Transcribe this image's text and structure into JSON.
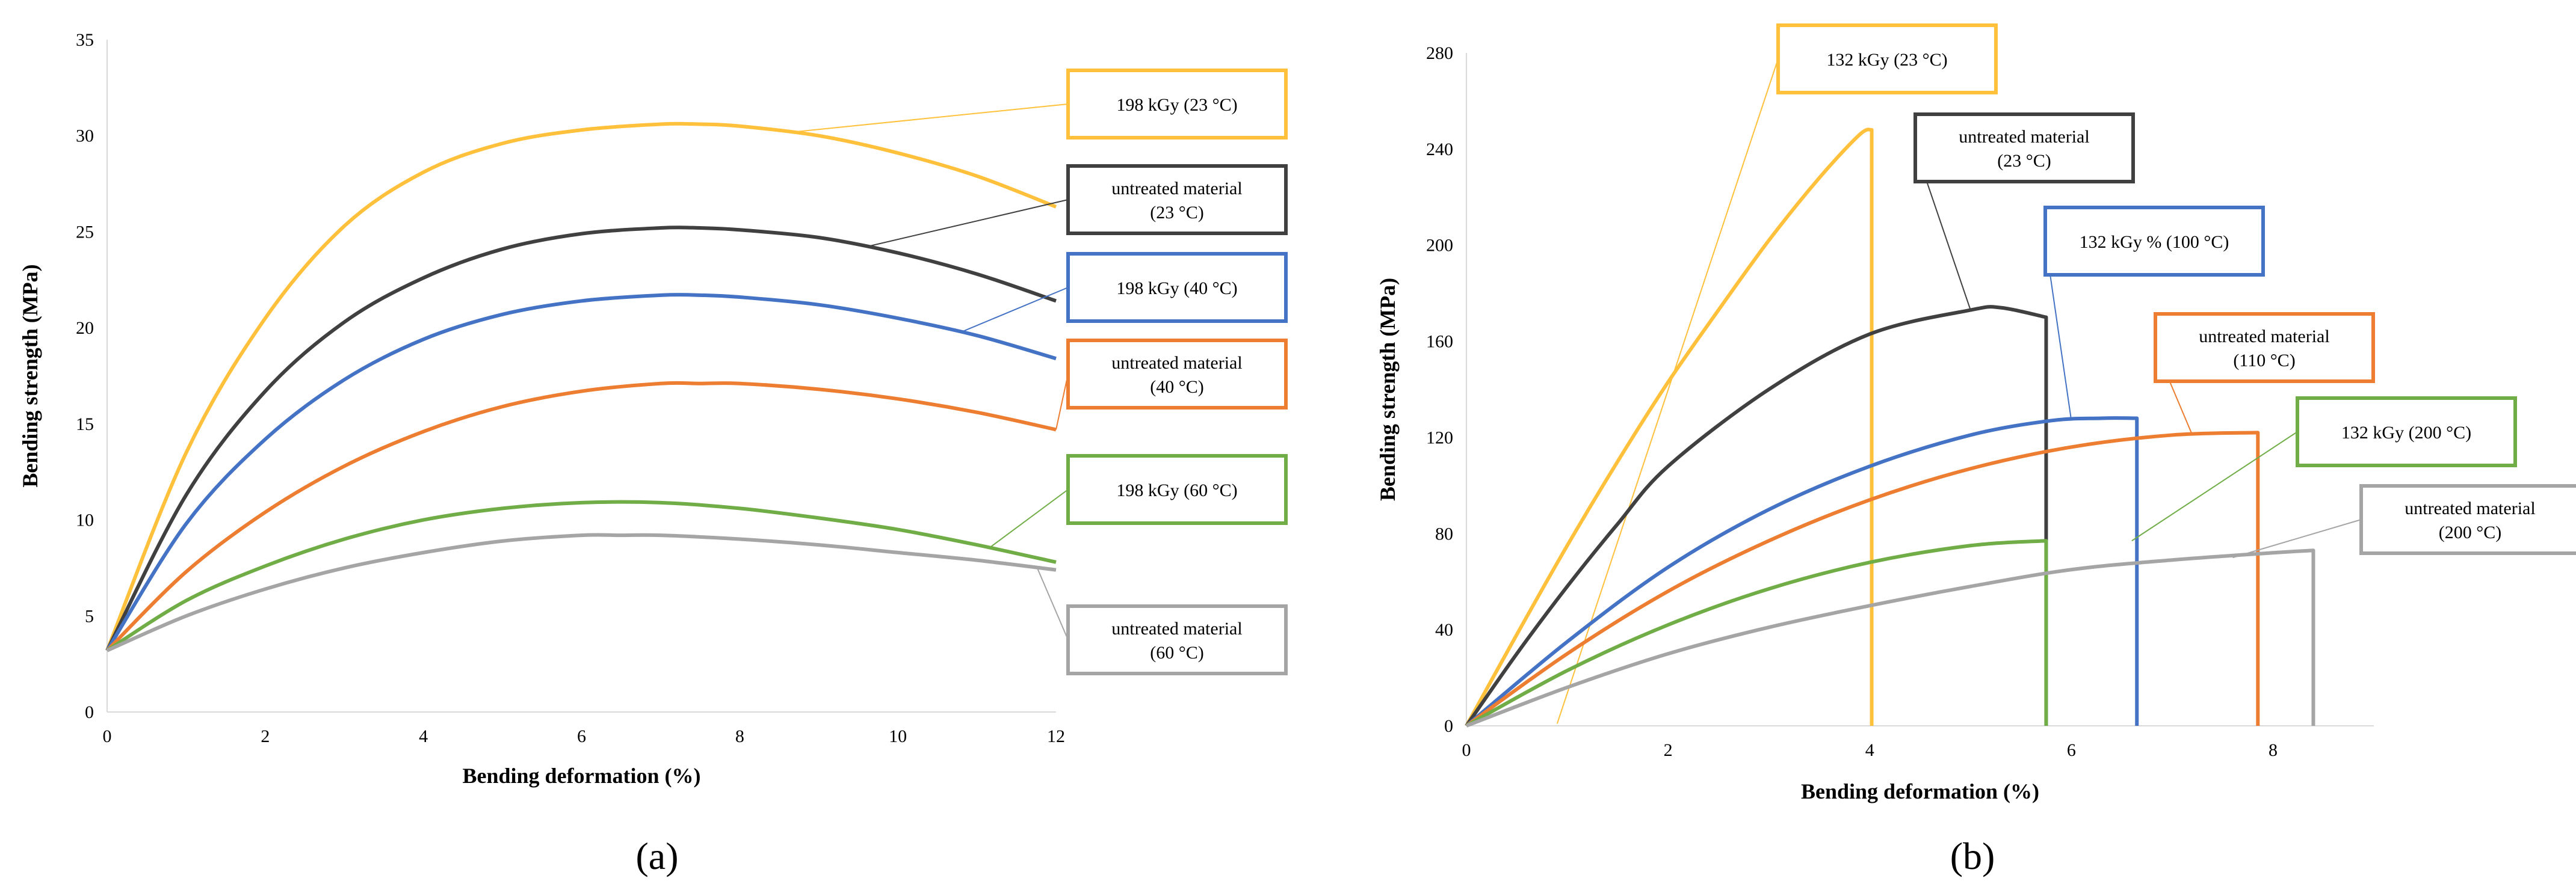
{
  "colors": {
    "yellow": "#FFC13B",
    "dark": "#404040",
    "blue": "#4472C4",
    "orange": "#ED7D31",
    "green": "#70AD47",
    "gray": "#A5A5A5"
  },
  "chart_data": [
    {
      "type": "line",
      "panel_label": "(a)",
      "xlabel": "Bending deformation (%)",
      "ylabel": "Bending strength (MPa)",
      "xlim": [
        0,
        12
      ],
      "ylim": [
        0,
        35
      ],
      "xticks": [
        0,
        2,
        4,
        6,
        8,
        10,
        12
      ],
      "yticks": [
        0,
        5,
        10,
        15,
        20,
        25,
        30,
        35
      ],
      "grid": false,
      "series": [
        {
          "name": "198 kGy (23 °C)",
          "label_lines": [
            "198 kGy (23 °C)"
          ],
          "color": "yellow",
          "x": [
            0,
            1,
            2,
            3,
            4,
            5,
            6,
            7,
            7.5,
            8,
            9,
            10,
            11,
            12
          ],
          "y": [
            3.2,
            13.5,
            20.5,
            25.3,
            28.1,
            29.6,
            30.3,
            30.6,
            30.6,
            30.5,
            30.0,
            29.1,
            27.9,
            26.3
          ]
        },
        {
          "name": "untreated material (23 °C)",
          "label_lines": [
            "untreated material",
            "(23 °C)"
          ],
          "color": "dark",
          "x": [
            0,
            1,
            2,
            3,
            4,
            5,
            6,
            7,
            7.5,
            8,
            9,
            10,
            11,
            12
          ],
          "y": [
            3.2,
            11.3,
            16.7,
            20.3,
            22.6,
            24.1,
            24.9,
            25.2,
            25.2,
            25.1,
            24.7,
            23.9,
            22.8,
            21.4
          ]
        },
        {
          "name": "198 kGy (40 °C)",
          "label_lines": [
            "198 kGy (40 °C)"
          ],
          "color": "blue",
          "x": [
            0,
            1,
            2,
            3,
            4,
            5,
            6,
            7,
            7.5,
            8,
            9,
            10,
            11,
            12
          ],
          "y": [
            3.2,
            9.8,
            14.2,
            17.3,
            19.4,
            20.7,
            21.4,
            21.7,
            21.7,
            21.6,
            21.2,
            20.5,
            19.6,
            18.4
          ]
        },
        {
          "name": "untreated material (40 °C)",
          "label_lines": [
            "untreated material",
            "(40 °C)"
          ],
          "color": "orange",
          "x": [
            0,
            1,
            2,
            3,
            4,
            5,
            6,
            7,
            7.5,
            8,
            9,
            10,
            11,
            12
          ],
          "y": [
            3.2,
            7.3,
            10.4,
            12.8,
            14.6,
            15.9,
            16.7,
            17.1,
            17.1,
            17.1,
            16.8,
            16.3,
            15.6,
            14.7
          ]
        },
        {
          "name": "198 kGy (60 °C)",
          "label_lines": [
            "198 kGy (60 °C)"
          ],
          "color": "green",
          "x": [
            0,
            1,
            2,
            3,
            4,
            5,
            6,
            7,
            8,
            9,
            10,
            11,
            12
          ],
          "y": [
            3.2,
            5.8,
            7.6,
            9.0,
            10.0,
            10.6,
            10.9,
            10.9,
            10.6,
            10.1,
            9.5,
            8.7,
            7.8
          ]
        },
        {
          "name": "untreated material (60 °C)",
          "label_lines": [
            "untreated material",
            "(60 °C)"
          ],
          "color": "gray",
          "x": [
            0,
            1,
            2,
            3,
            4,
            5,
            6,
            6.5,
            7,
            8,
            9,
            10,
            11,
            12
          ],
          "y": [
            3.2,
            5.0,
            6.4,
            7.5,
            8.3,
            8.9,
            9.2,
            9.2,
            9.2,
            9.0,
            8.7,
            8.3,
            7.9,
            7.4
          ]
        }
      ]
    },
    {
      "type": "line",
      "panel_label": "(b)",
      "xlabel": "Bending deformation (%)",
      "ylabel": "Bending strength (MPa)",
      "xlim": [
        0,
        9
      ],
      "ylim": [
        0,
        280
      ],
      "xticks": [
        0,
        2,
        4,
        6,
        8
      ],
      "yticks": [
        0,
        40,
        80,
        120,
        160,
        200,
        240,
        280
      ],
      "grid": false,
      "series": [
        {
          "name": "132 kGy (23 °C)",
          "label_lines": [
            "132 kGy (23 °C)"
          ],
          "color": "yellow",
          "x": [
            0,
            0.5,
            1,
            1.5,
            2,
            2.5,
            3,
            3.5,
            3.9,
            4.02,
            4.02
          ],
          "y": [
            0,
            38,
            75,
            110,
            143,
            173,
            202,
            228,
            246,
            248,
            0
          ]
        },
        {
          "name": "untreated material (23 °C)",
          "label_lines": [
            "untreated material",
            "(23 °C)"
          ],
          "color": "dark",
          "x": [
            0,
            0.5,
            1,
            1.5,
            2,
            3,
            4,
            5,
            5.3,
            5.75,
            5.75
          ],
          "y": [
            0,
            30,
            58,
            84,
            108,
            140,
            163,
            173,
            174,
            170,
            0
          ]
        },
        {
          "name": "132 kGy % (100 °C)",
          "label_lines": [
            "132 kGy % (100 °C)"
          ],
          "color": "blue",
          "x": [
            0,
            1,
            2,
            3,
            4,
            5,
            5.8,
            6.3,
            6.65,
            6.65
          ],
          "y": [
            0,
            35,
            66,
            90,
            108,
            121,
            127,
            128,
            128,
            0
          ]
        },
        {
          "name": "untreated material (110 °C)",
          "label_lines": [
            "untreated material",
            "(110 °C)"
          ],
          "color": "orange",
          "x": [
            0,
            1,
            2,
            3,
            4,
            5,
            6,
            7,
            7.85,
            7.85
          ],
          "y": [
            0,
            30,
            56,
            77,
            94,
            107,
            116,
            121,
            122,
            0
          ]
        },
        {
          "name": "132 kGy (200 °C)",
          "label_lines": [
            "132 kGy (200 °C)"
          ],
          "color": "green",
          "x": [
            0,
            1,
            2,
            3,
            4,
            5,
            5.75,
            5.75
          ],
          "y": [
            0,
            23,
            42,
            57,
            68,
            75,
            77,
            0
          ]
        },
        {
          "name": "untreated material (200 °C)",
          "label_lines": [
            "untreated material",
            "(200 °C)"
          ],
          "color": "gray",
          "x": [
            0,
            1,
            2,
            3,
            4,
            5,
            6,
            7,
            8,
            8.4,
            8.4
          ],
          "y": [
            0,
            16,
            30,
            41,
            50,
            58,
            65,
            69,
            72,
            73,
            0
          ]
        }
      ]
    }
  ]
}
